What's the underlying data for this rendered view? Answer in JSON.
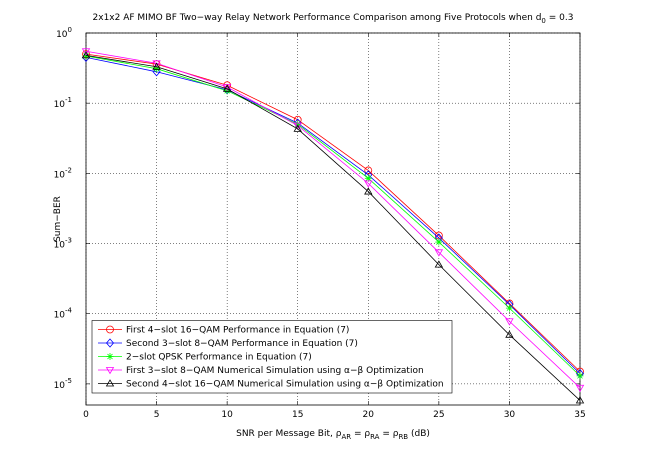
{
  "chart_data": {
    "type": "line",
    "title": [
      {
        "text": "2x1x2 AF MIMO BF Two−way Relay Network Performance Comparison among Five Protocols when d"
      },
      {
        "text": "0",
        "sub": true
      },
      {
        "text": " = 0.3"
      }
    ],
    "xlabel": [
      {
        "text": "SNR per Message Bit, ρ"
      },
      {
        "text": "AR",
        "sub": true
      },
      {
        "text": " = ρ"
      },
      {
        "text": "RA",
        "sub": true
      },
      {
        "text": " = ρ"
      },
      {
        "text": "RB",
        "sub": true
      },
      {
        "text": " (dB)"
      }
    ],
    "ylabel": "Sum−BER",
    "x": [
      0,
      5,
      10,
      15,
      20,
      25,
      30,
      35
    ],
    "xlim": [
      0,
      35
    ],
    "xticks": [
      0,
      5,
      10,
      15,
      20,
      25,
      30,
      35
    ],
    "ylim": [
      5e-06,
      1
    ],
    "log_y": true,
    "yticks": [
      {
        "value": 1,
        "label": "10",
        "exponent": "0"
      },
      {
        "value": 0.1,
        "label": "10",
        "exponent": "-1"
      },
      {
        "value": 0.01,
        "label": "10",
        "exponent": "-2"
      },
      {
        "value": 0.001,
        "label": "10",
        "exponent": "-3"
      },
      {
        "value": 0.0001,
        "label": "10",
        "exponent": "-4"
      },
      {
        "value": 1e-05,
        "label": "10",
        "exponent": "-5"
      }
    ],
    "grid": true,
    "legend": "lower left",
    "series": [
      {
        "name": "First 4−slot 16−QAM Performance in Equation (7)",
        "color": "#ff0000",
        "marker": "circle",
        "values": [
          0.5,
          0.36,
          0.18,
          0.058,
          0.011,
          0.0013,
          0.00014,
          1.5e-05
        ]
      },
      {
        "name": "Second 3−slot 8−QAM Performance in Equation (7)",
        "color": "#0000ff",
        "marker": "diamond",
        "values": [
          0.45,
          0.28,
          0.155,
          0.052,
          0.0095,
          0.0012,
          0.000135,
          1.4e-05
        ]
      },
      {
        "name": "2−slot QPSK Performance in Equation (7)",
        "color": "#00ff00",
        "marker": "star",
        "values": [
          0.47,
          0.31,
          0.15,
          0.05,
          0.0085,
          0.00105,
          0.00012,
          1.3e-05
        ]
      },
      {
        "name": "First 3−slot 8−QAM Numerical Simulation using α−β Optimization",
        "color": "#ff00ff",
        "marker": "triangle-down",
        "values": [
          0.55,
          0.37,
          0.17,
          0.048,
          0.0072,
          0.00075,
          7.8e-05,
          8.8e-06
        ]
      },
      {
        "name": "Second 4−slot 16−QAM Numerical Simulation using α−β Optimization",
        "color": "#000000",
        "marker": "triangle-up",
        "values": [
          0.48,
          0.33,
          0.16,
          0.043,
          0.0055,
          0.0005,
          5e-05,
          5.8e-06
        ]
      }
    ]
  }
}
